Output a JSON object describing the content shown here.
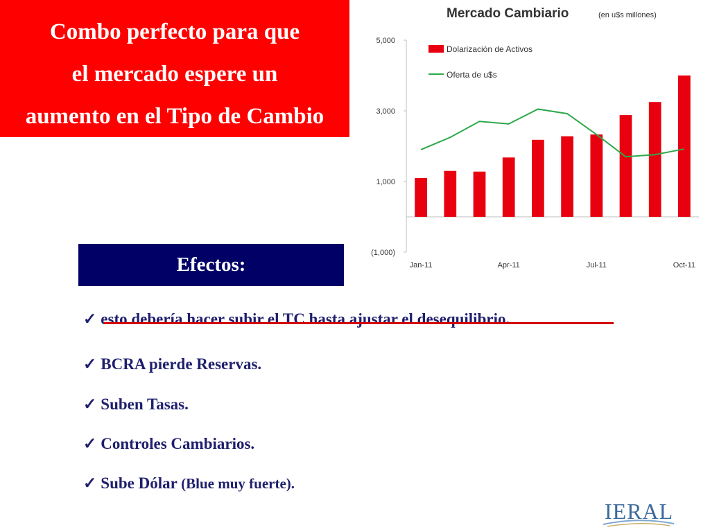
{
  "title_box": {
    "lines": [
      "Combo perfecto para que",
      "el mercado espere un",
      "aumento en el Tipo de Cambio"
    ],
    "bg": "#ff0000"
  },
  "chart_data": {
    "type": "bar+line",
    "title": "Mercado Cambiario",
    "subtitle": "(en u$s millones)",
    "y_ticks": [
      "5,000",
      "3,000",
      "1,000",
      "(1,000)"
    ],
    "y_tick_values": [
      5000,
      3000,
      1000,
      -1000
    ],
    "ylim": [
      -1000,
      5000
    ],
    "x_tick_labels": [
      "Jan-11",
      "Apr-11",
      "Jul-11",
      "Oct-11"
    ],
    "x_tick_index": [
      0,
      3,
      6,
      9
    ],
    "n_points": 10,
    "series": [
      {
        "name": "Dolarización de Activos",
        "kind": "bar",
        "color": "#e8000f",
        "values": [
          1100,
          1300,
          1280,
          1680,
          2180,
          2280,
          2330,
          2880,
          3250,
          4000
        ]
      },
      {
        "name": "Oferta de u$s",
        "kind": "line",
        "color": "#2ea84a",
        "values": [
          1900,
          2250,
          2700,
          2630,
          3050,
          2920,
          2330,
          1700,
          1760,
          1920
        ]
      }
    ],
    "grid": false,
    "legend": "top-left"
  },
  "efectos": {
    "label": "Efectos:",
    "bg": "#000066"
  },
  "bullets": {
    "check": "✓",
    "items": [
      {
        "text": "esto debería hacer subir el TC hasta  ajustar el desequilibrio",
        "tail": "."
      },
      {
        "text": "BCRA pierde Reservas.",
        "tail": ""
      },
      {
        "text": "Suben Tasas.",
        "tail": ""
      },
      {
        "text": "Controles Cambiarios.",
        "tail": ""
      },
      {
        "text": "Sube Dólar ",
        "tail": "(Blue muy fuerte)."
      }
    ]
  },
  "logo": {
    "text": "IERAL"
  }
}
